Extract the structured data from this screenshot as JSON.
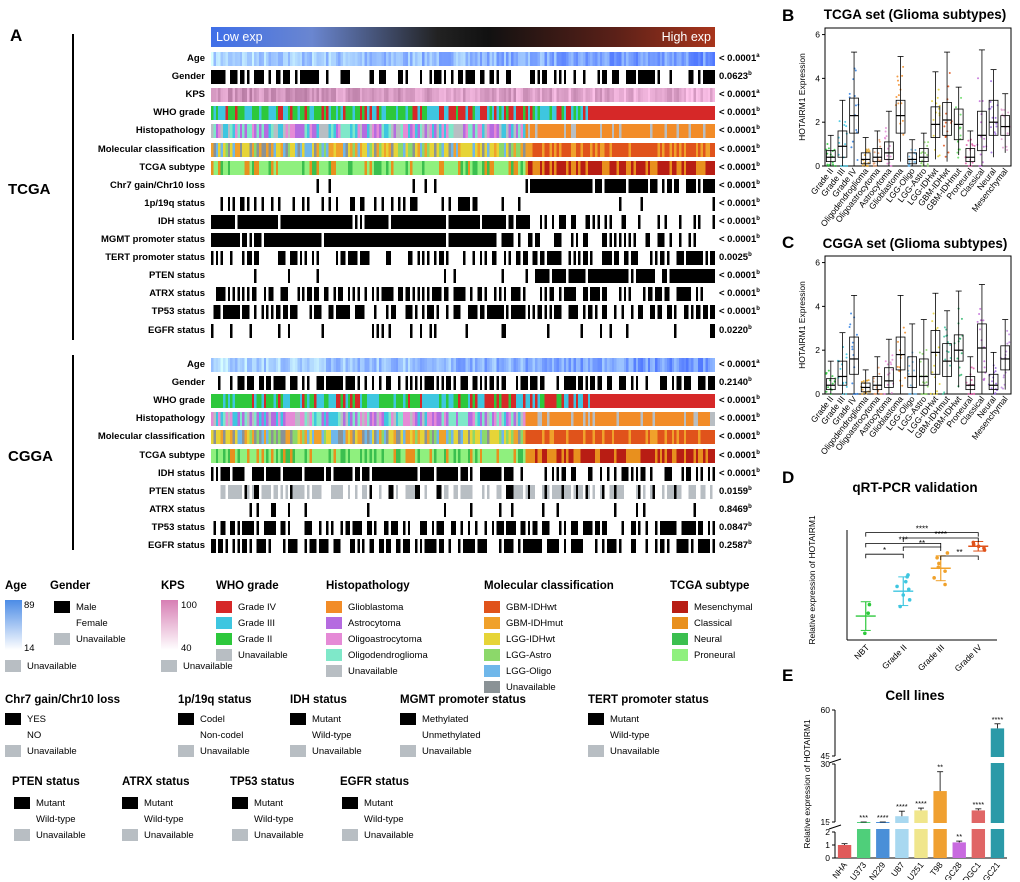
{
  "panels": {
    "A": "A",
    "B": "B",
    "C": "C",
    "D": "D",
    "E": "E"
  },
  "heatmap": {
    "gradient_low": "Low exp",
    "gradient_high": "High exp",
    "cohorts": {
      "tcga": "TCGA",
      "cgga": "CGGA"
    },
    "tcga_rows": [
      {
        "label": "Age",
        "p": "< 0.0001",
        "sup": "a",
        "kind": "age"
      },
      {
        "label": "Gender",
        "p": "0.0623",
        "sup": "b",
        "kind": "binary"
      },
      {
        "label": "KPS",
        "p": "< 0.0001",
        "sup": "a",
        "kind": "kps"
      },
      {
        "label": "WHO grade",
        "p": "< 0.0001",
        "sup": "b",
        "kind": "who"
      },
      {
        "label": "Histopathology",
        "p": "< 0.0001",
        "sup": "b",
        "kind": "histo"
      },
      {
        "label": "Molecular classification",
        "p": "< 0.0001",
        "sup": "b",
        "kind": "mol"
      },
      {
        "label": "TCGA subtype",
        "p": "< 0.0001",
        "sup": "b",
        "kind": "subtype"
      },
      {
        "label": "Chr7 gain/Chr10 loss",
        "p": "< 0.0001",
        "sup": "b",
        "kind": "sparse-right"
      },
      {
        "label": "1p/19q status",
        "p": "< 0.0001",
        "sup": "b",
        "kind": "sparse-left"
      },
      {
        "label": "IDH status",
        "p": "< 0.0001",
        "sup": "b",
        "kind": "dense-left"
      },
      {
        "label": "MGMT promoter status",
        "p": "< 0.0001",
        "sup": "b",
        "kind": "dense-left"
      },
      {
        "label": "TERT promoter status",
        "p": "0.0025",
        "sup": "b",
        "kind": "binary"
      },
      {
        "label": "PTEN status",
        "p": "< 0.0001",
        "sup": "b",
        "kind": "sparse-right"
      },
      {
        "label": "ATRX status",
        "p": "< 0.0001",
        "sup": "b",
        "kind": "binary"
      },
      {
        "label": "TP53 status",
        "p": "< 0.0001",
        "sup": "b",
        "kind": "binary"
      },
      {
        "label": "EGFR status",
        "p": "0.0220",
        "sup": "b",
        "kind": "sparse"
      }
    ],
    "cgga_rows": [
      {
        "label": "Age",
        "p": "< 0.0001",
        "sup": "a",
        "kind": "age"
      },
      {
        "label": "Gender",
        "p": "0.2140",
        "sup": "b",
        "kind": "blocky"
      },
      {
        "label": "WHO grade",
        "p": "< 0.0001",
        "sup": "b",
        "kind": "who"
      },
      {
        "label": "Histopathology",
        "p": "< 0.0001",
        "sup": "b",
        "kind": "histo"
      },
      {
        "label": "Molecular classification",
        "p": "< 0.0001",
        "sup": "b",
        "kind": "mol"
      },
      {
        "label": "TCGA subtype",
        "p": "< 0.0001",
        "sup": "b",
        "kind": "subtype"
      },
      {
        "label": "IDH status",
        "p": "< 0.0001",
        "sup": "b",
        "kind": "blocky-left"
      },
      {
        "label": "PTEN status",
        "p": "0.0159",
        "sup": "b",
        "kind": "grey-sparse"
      },
      {
        "label": "ATRX status",
        "p": "0.8469",
        "sup": "b",
        "kind": "sparse"
      },
      {
        "label": "TP53 status",
        "p": "0.0847",
        "sup": "b",
        "kind": "blocky"
      },
      {
        "label": "EGFR status",
        "p": "0.2587",
        "sup": "b",
        "kind": "blocky"
      }
    ]
  },
  "legend": {
    "age": {
      "title": "Age",
      "max": "89",
      "min": "14",
      "unavailable": "Unavailable"
    },
    "gender": {
      "title": "Gender",
      "items": [
        "Male",
        "Female",
        "Unavailable"
      ]
    },
    "kps": {
      "title": "KPS",
      "max": "100",
      "min": "40",
      "unavailable": "Unavailable"
    },
    "who": {
      "title": "WHO grade",
      "items": [
        "Grade IV",
        "Grade III",
        "Grade II",
        "Unavailable"
      ]
    },
    "histo": {
      "title": "Histopathology",
      "items": [
        "Glioblastoma",
        "Astrocytoma",
        "Oligoastrocytoma",
        "Oligodendroglioma",
        "Unavailable"
      ]
    },
    "mol": {
      "title": "Molecular classification",
      "items": [
        "GBM-IDHwt",
        "GBM-IDHmut",
        "LGG-IDHwt",
        "LGG-Astro",
        "LGG-Oligo",
        "Unavailable"
      ]
    },
    "subtype": {
      "title": "TCGA subtype",
      "items": [
        "Mesenchymal",
        "Classical",
        "Neural",
        "Proneural"
      ]
    },
    "chr7": {
      "title": "Chr7 gain/Chr10 loss",
      "items": [
        "YES",
        "NO",
        "Unavailable"
      ]
    },
    "codel": {
      "title": "1p/19q status",
      "items": [
        "Codel",
        "Non-codel",
        "Unavailable"
      ]
    },
    "idh": {
      "title": "IDH status",
      "items": [
        "Mutant",
        "Wild-type",
        "Unavailable"
      ]
    },
    "mgmt": {
      "title": "MGMT promoter status",
      "items": [
        "Methylated",
        "Unmethylated",
        "Unavailable"
      ]
    },
    "tert": {
      "title": "TERT promoter status",
      "items": [
        "Mutant",
        "Wild-type",
        "Unavailable"
      ]
    },
    "pten": {
      "title": "PTEN status",
      "items": [
        "Mutant",
        "Wild-type",
        "Unavailable"
      ]
    },
    "atrx": {
      "title": "ATRX status",
      "items": [
        "Mutant",
        "Wild-type",
        "Unavailable"
      ]
    },
    "tp53": {
      "title": "TP53 status",
      "items": [
        "Mutant",
        "Wild-type",
        "Unavailable"
      ]
    },
    "egfr": {
      "title": "EGFR status",
      "items": [
        "Mutant",
        "Wild-type",
        "Unavailable"
      ]
    }
  },
  "colors": {
    "grade4": "#d62828",
    "grade3": "#3ec6e0",
    "grade2": "#2dc83c",
    "unavailable": "#b8bec3",
    "gbm": "#f28c28",
    "astro": "#b56be0",
    "oligoastro": "#e58ad6",
    "oligo": "#7fe8c9",
    "gbm_idhwt": "#e0531b",
    "gbm_idhmut": "#f0a12b",
    "lgg_idhwt": "#e6d437",
    "lgg_astro": "#8cd86a",
    "lgg_oligo": "#6fb7ea",
    "mol_unavail": "#8a9296",
    "mesenchymal": "#b81d14",
    "classical": "#e8901e",
    "neural": "#3bbf4f",
    "proneural": "#8ff07e",
    "kps": "#d77fb4",
    "age": "#4c8ce6",
    "black": "#000000"
  },
  "chart_data": [
    {
      "id": "B",
      "type": "box",
      "title": "TCGA set (Glioma subtypes)",
      "ylabel": "HOTAIRM1 Expression",
      "ylim": [
        0,
        6.3
      ],
      "yticks": [
        0,
        2,
        4,
        6
      ],
      "categories": [
        "Grade II",
        "Grade III",
        "Grade IV",
        "Oligodendroglioma",
        "Oligoastrocytoma",
        "Astrocytoma",
        "Glioblastoma",
        "LGG-Oligo",
        "LGG-Astro",
        "LGG-IDHwt",
        "GBM-IDHwt",
        "GBM-IDHmut",
        "Proneural",
        "Classical",
        "Neural",
        "Mesenchymal"
      ],
      "colors": [
        "#2dc83c",
        "#3ec6e0",
        "#2f7fe0",
        "#e6a52b",
        "#e89b6a",
        "#e58ad6",
        "#f28c28",
        "#6fb7ea",
        "#8cd86a",
        "#e6d437",
        "#e0531b",
        "#5ed85c",
        "#e05aa8",
        "#c26bd8",
        "#9b6be0",
        "#e0a0d0"
      ],
      "median": [
        0.4,
        0.9,
        2.3,
        0.3,
        0.4,
        0.6,
        2.3,
        0.3,
        0.4,
        1.9,
        2.1,
        1.9,
        0.4,
        1.4,
        2.0,
        1.8
      ],
      "q1": [
        0.2,
        0.4,
        1.5,
        0.1,
        0.2,
        0.3,
        1.5,
        0.1,
        0.2,
        1.3,
        1.4,
        1.2,
        0.2,
        0.7,
        1.4,
        1.4
      ],
      "q3": [
        0.7,
        1.6,
        3.1,
        0.6,
        0.8,
        1.1,
        3.0,
        0.6,
        0.8,
        2.7,
        2.9,
        2.6,
        0.8,
        2.5,
        3.0,
        2.3
      ],
      "lo": [
        0.0,
        0.0,
        0.0,
        0.0,
        0.0,
        0.0,
        0.2,
        0.0,
        0.0,
        0.3,
        0.2,
        0.5,
        0.0,
        0.0,
        0.4,
        0.6
      ],
      "hi": [
        1.4,
        3.0,
        5.2,
        1.3,
        1.6,
        2.5,
        5.0,
        1.2,
        1.5,
        4.3,
        5.2,
        3.6,
        1.6,
        5.3,
        4.4,
        3.3
      ]
    },
    {
      "id": "C",
      "type": "box",
      "title": "CGGA set (Glioma subtypes)",
      "ylabel": "HOTAIRM1 Expression",
      "ylim": [
        0,
        6.3
      ],
      "yticks": [
        0,
        2,
        4,
        6
      ],
      "categories": [
        "Grade II",
        "Grade III",
        "Grade IV",
        "Oligodendroglioma",
        "Oligoastrocytoma",
        "Astrocytoma",
        "Glioblastoma",
        "LGG-Oligo",
        "LGG-Astro",
        "LGG-IDHwt",
        "GBM-IDHmut",
        "GBM-IDHwt",
        "Proneural",
        "Classical",
        "Neural",
        "Mesenchymal"
      ],
      "colors": [
        "#2dc83c",
        "#3ec6e0",
        "#2f7fe0",
        "#e6a52b",
        "#e89b6a",
        "#e58ad6",
        "#f28c28",
        "#6fb7ea",
        "#8cd86a",
        "#e6d437",
        "#3ec6a0",
        "#2bb56a",
        "#e05aa8",
        "#c26bd8",
        "#9b6be0",
        "#c08ae0"
      ],
      "median": [
        0.4,
        0.8,
        1.6,
        0.3,
        0.4,
        0.6,
        1.8,
        0.8,
        0.8,
        1.9,
        1.5,
        2.0,
        0.4,
        2.1,
        0.4,
        1.6
      ],
      "q1": [
        0.2,
        0.4,
        0.9,
        0.1,
        0.2,
        0.3,
        1.1,
        0.3,
        0.4,
        0.9,
        0.8,
        1.5,
        0.2,
        1.0,
        0.2,
        1.1
      ],
      "q3": [
        0.7,
        1.5,
        2.6,
        0.5,
        0.8,
        1.2,
        2.6,
        1.7,
        1.6,
        2.9,
        2.3,
        2.7,
        0.8,
        3.2,
        0.9,
        2.2
      ],
      "lo": [
        0.0,
        0.0,
        0.0,
        0.0,
        0.0,
        0.0,
        0.0,
        0.0,
        0.0,
        0.0,
        0.0,
        0.3,
        0.0,
        0.0,
        0.0,
        0.2
      ],
      "hi": [
        1.5,
        2.8,
        4.5,
        1.1,
        1.7,
        2.5,
        4.5,
        3.2,
        3.4,
        4.6,
        3.8,
        4.7,
        1.7,
        5.0,
        1.9,
        3.4
      ]
    },
    {
      "id": "D",
      "type": "scatter",
      "title": "qRT-PCR validation",
      "ylabel": "Relative expression of HOTAIRM1",
      "categories": [
        "NBT",
        "Grade II",
        "Grade III",
        "Grade IV"
      ],
      "ylim": [
        -2.5,
        9
      ],
      "means": [
        0.0,
        2.6,
        5.0,
        7.3
      ],
      "errors": [
        1.5,
        1.5,
        1.3,
        0.5
      ],
      "colors": [
        "#2dc83c",
        "#3ec6e0",
        "#f0a12b",
        "#e0531b"
      ],
      "points": [
        [
          -1.8,
          0.3,
          1.2
        ],
        [
          1.0,
          1.7,
          2.2,
          2.8,
          3.1,
          3.6,
          4.1,
          4.3
        ],
        [
          3.3,
          4.0,
          4.7,
          5.1,
          5.5,
          6.1,
          6.6
        ],
        [
          6.9,
          7.1,
          7.3,
          7.5,
          7.7
        ]
      ],
      "brackets": [
        "*",
        "***",
        "****",
        "**",
        "****",
        "**"
      ]
    },
    {
      "id": "E",
      "type": "bar",
      "title": "Cell lines",
      "ylabel": "Relative expression of HOTAIRM1",
      "categories": [
        "NHA",
        "U373",
        "LN229",
        "U87",
        "U251",
        "T98",
        "DGC28",
        "DGC1",
        "DGC21"
      ],
      "values": [
        1.0,
        5.8,
        9.6,
        16.5,
        18.0,
        23.0,
        1.2,
        18.0,
        54.0
      ],
      "errors": [
        0.1,
        0.6,
        0.9,
        1.3,
        0.6,
        5.0,
        0.1,
        0.4,
        1.5
      ],
      "colors": [
        "#e05a5a",
        "#4fcf7a",
        "#4a8fd8",
        "#a8d8f0",
        "#f0e68c",
        "#f0a030",
        "#c86adf",
        "#e06666",
        "#2b9aa8"
      ],
      "significance": [
        "",
        "***",
        "****",
        "****",
        "****",
        "**",
        "**",
        "****",
        "****"
      ],
      "yticks": [
        "0",
        "1",
        "2",
        "15",
        "30",
        "45",
        "60"
      ]
    }
  ]
}
